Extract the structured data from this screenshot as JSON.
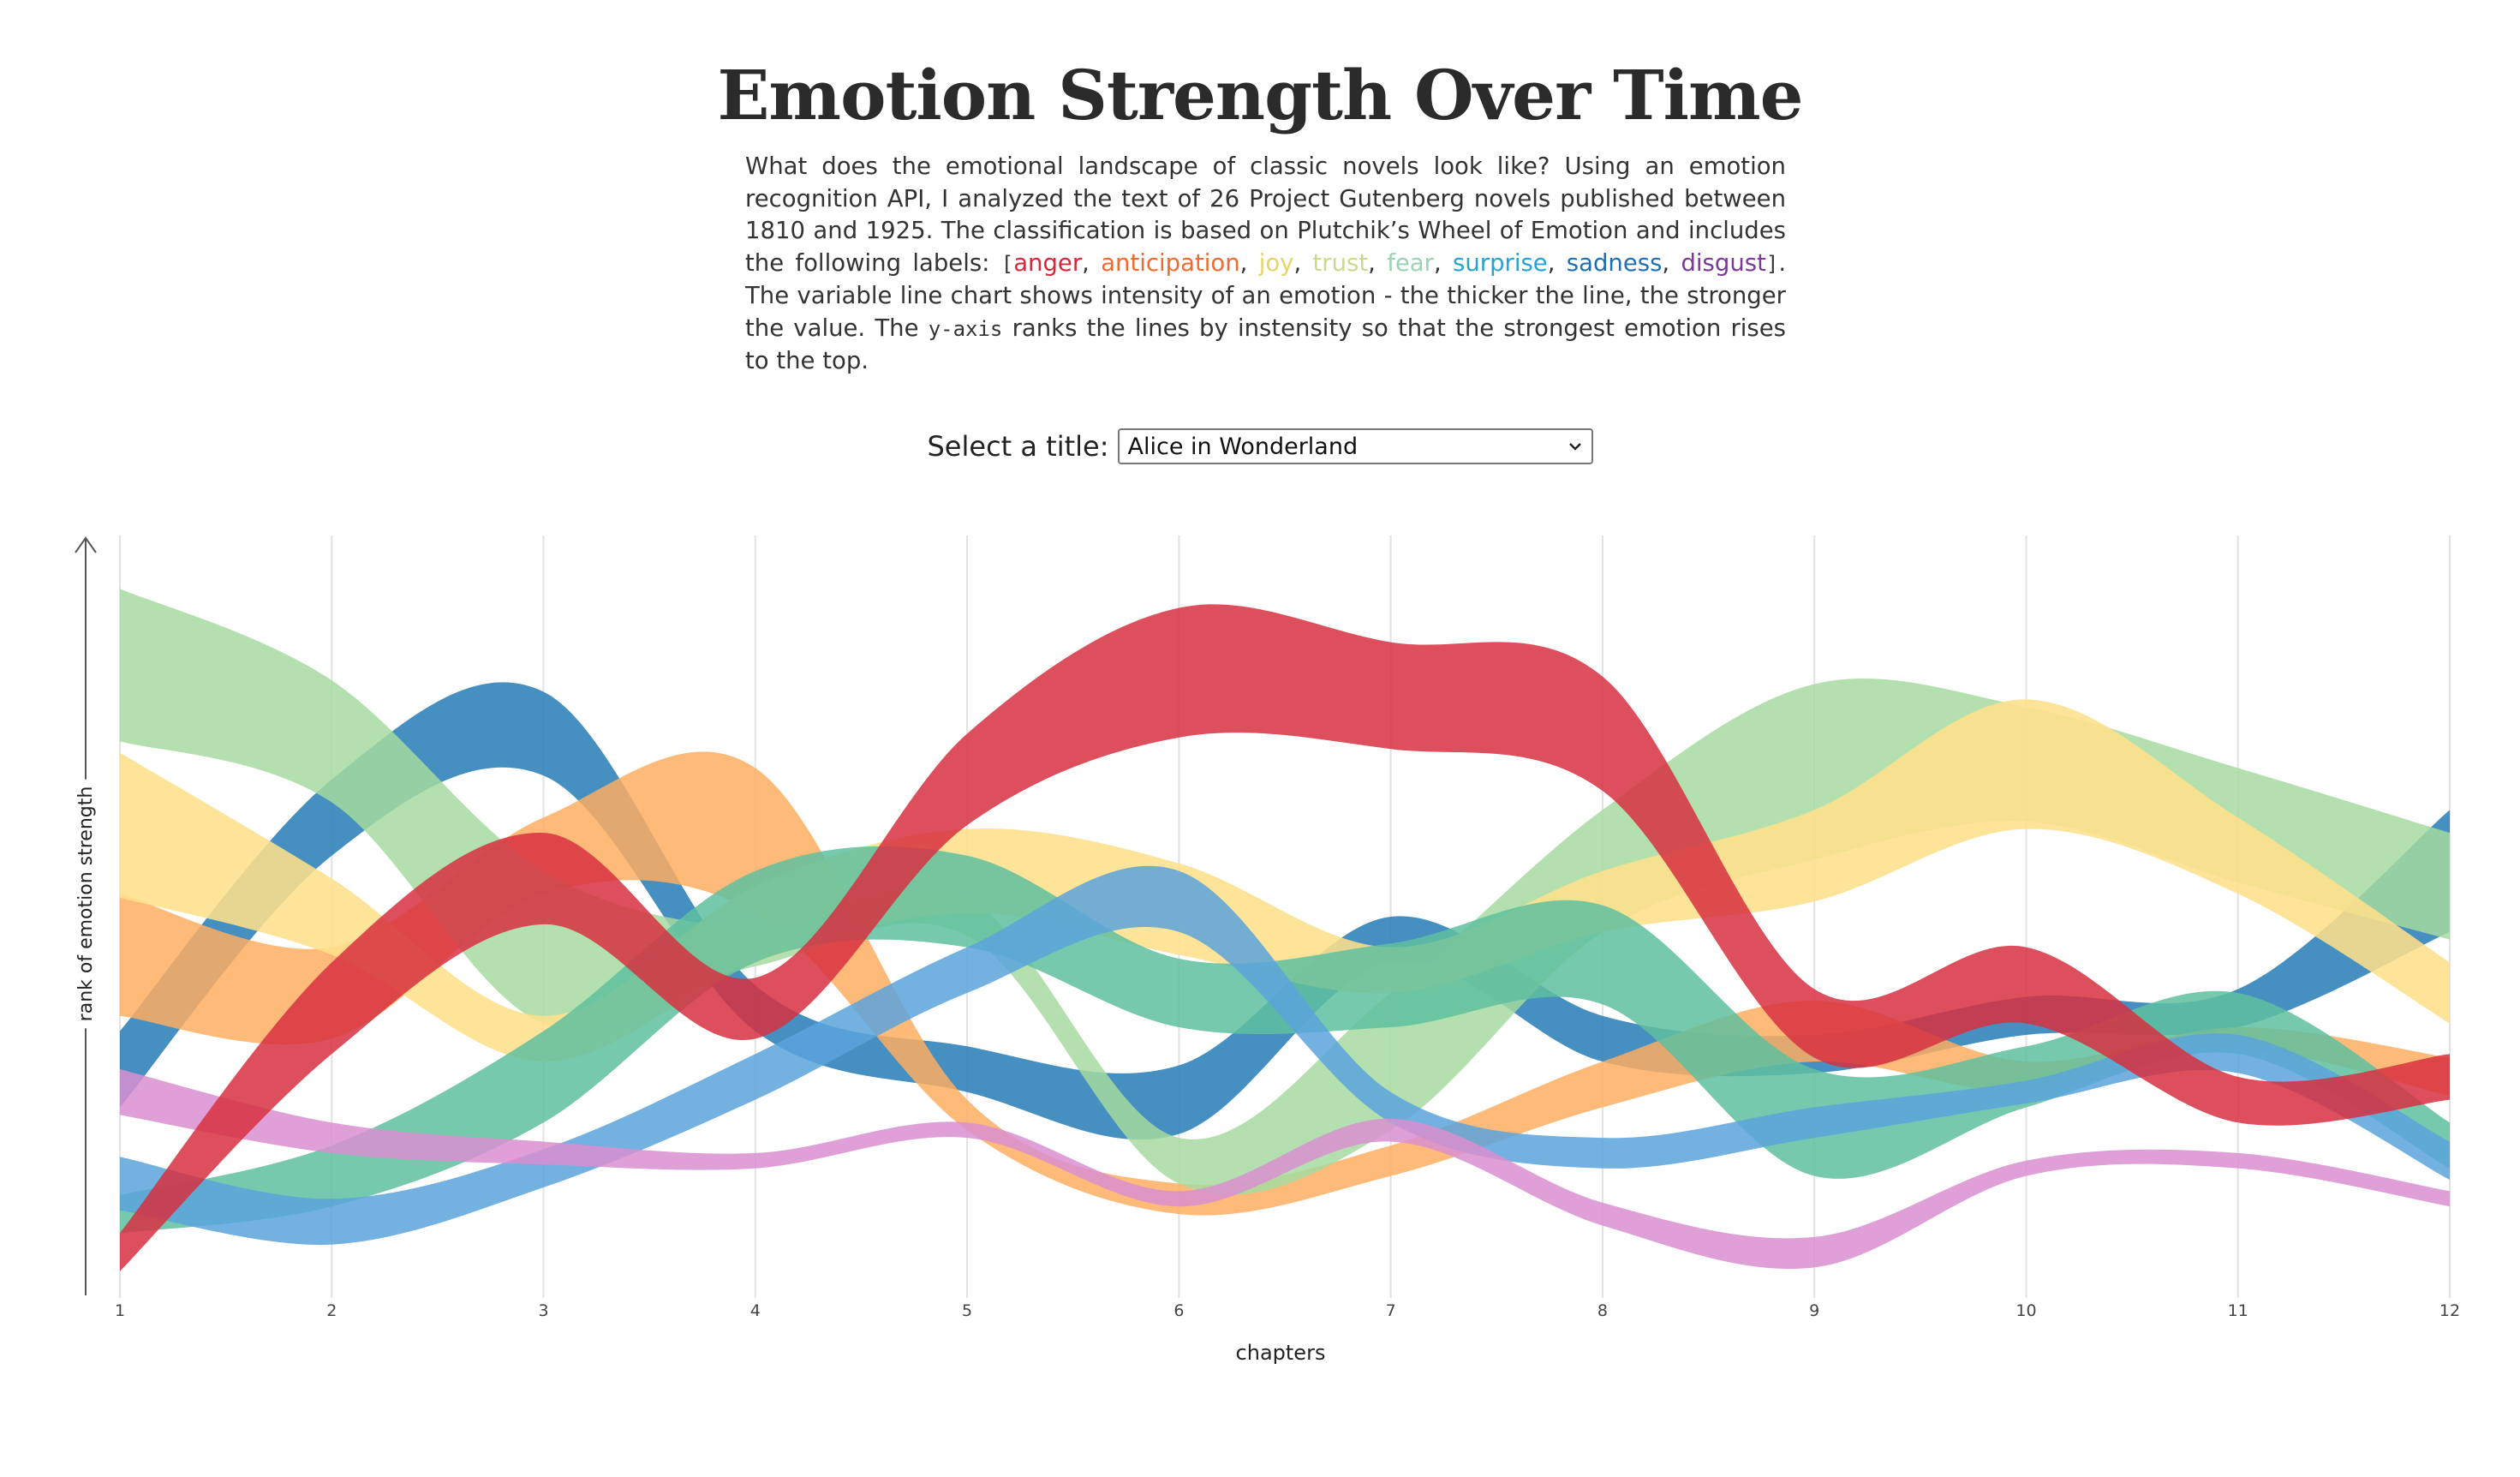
{
  "page": {
    "title": "Emotion Strength Over Time",
    "desc_intro": "What does the emotional landscape of classic novels look like? Using an emotion recognition API, I analyzed the text of 26 Project Gutenberg novels published between 1810 and 1925. The classification is based on Plutchik’s Wheel of Emotion and includes the following labels: ",
    "bracket_open": "[",
    "bracket_close": "]",
    "sep": ", ",
    "desc_mid": ". The variable line chart shows intensity of an emotion - the thicker the line, the stronger the value. The ",
    "yaxis_code": "y-axis",
    "desc_end": " ranks the lines by instensity so that the strongest emotion rises to the top.",
    "labels": {
      "anger": "anger",
      "anticipation": "anticipation",
      "joy": "joy",
      "trust": "trust",
      "fear": "fear",
      "surprise": "surprise",
      "sadness": "sadness",
      "disgust": "disgust"
    }
  },
  "selector": {
    "label": "Select a title:",
    "value": "Alice in Wonderland"
  },
  "chart_data": {
    "type": "area",
    "title": "",
    "xlabel": "chapters",
    "ylabel": "rank of emotion strength",
    "x": [
      1,
      2,
      3,
      4,
      5,
      6,
      7,
      8,
      9,
      10,
      11,
      12
    ],
    "ylim": [
      0,
      1
    ],
    "grid": true,
    "series": [
      {
        "color": "#2c7fb8",
        "opacity": 0.88,
        "center": [
          0.3,
          0.63,
          0.74,
          0.38,
          0.3,
          0.26,
          0.47,
          0.34,
          0.32,
          0.37,
          0.38,
          0.56
        ],
        "width": [
          0.1,
          0.1,
          0.11,
          0.06,
          0.06,
          0.09,
          0.06,
          0.06,
          0.05,
          0.05,
          0.05,
          0.16
        ]
      },
      {
        "color": "#fdae61",
        "opacity": 0.85,
        "center": [
          0.45,
          0.4,
          0.58,
          0.6,
          0.24,
          0.13,
          0.18,
          0.28,
          0.35,
          0.29,
          0.34,
          0.29
        ],
        "width": [
          0.16,
          0.12,
          0.1,
          0.19,
          0.04,
          0.04,
          0.04,
          0.06,
          0.08,
          0.04,
          0.03,
          0.05
        ]
      },
      {
        "color": "#a6dba0",
        "opacity": 0.85,
        "center": [
          0.83,
          0.73,
          0.46,
          0.46,
          0.5,
          0.18,
          0.31,
          0.56,
          0.69,
          0.7,
          0.62,
          0.54
        ],
        "width": [
          0.2,
          0.16,
          0.2,
          0.05,
          0.05,
          0.06,
          0.18,
          0.16,
          0.23,
          0.15,
          0.15,
          0.14
        ]
      },
      {
        "color": "#fee08b",
        "opacity": 0.88,
        "center": [
          0.62,
          0.5,
          0.34,
          0.49,
          0.56,
          0.51,
          0.43,
          0.52,
          0.58,
          0.7,
          0.58,
          0.4
        ],
        "width": [
          0.19,
          0.1,
          0.06,
          0.1,
          0.11,
          0.12,
          0.06,
          0.08,
          0.12,
          0.17,
          0.1,
          0.08
        ]
      },
      {
        "color": "#5fbf9f",
        "opacity": 0.85,
        "center": [
          0.11,
          0.16,
          0.29,
          0.5,
          0.52,
          0.4,
          0.41,
          0.45,
          0.23,
          0.29,
          0.36,
          0.2
        ],
        "width": [
          0.05,
          0.08,
          0.12,
          0.12,
          0.12,
          0.09,
          0.11,
          0.13,
          0.14,
          0.08,
          0.08,
          0.06
        ]
      },
      {
        "color": "#5ba3dc",
        "opacity": 0.85,
        "center": [
          0.15,
          0.1,
          0.17,
          0.29,
          0.43,
          0.52,
          0.25,
          0.19,
          0.23,
          0.27,
          0.32,
          0.18
        ],
        "width": [
          0.07,
          0.06,
          0.05,
          0.06,
          0.06,
          0.08,
          0.04,
          0.04,
          0.04,
          0.03,
          0.05,
          0.05
        ]
      },
      {
        "color": "#d98fd0",
        "opacity": 0.85,
        "center": [
          0.27,
          0.21,
          0.19,
          0.18,
          0.22,
          0.13,
          0.22,
          0.11,
          0.06,
          0.17,
          0.18,
          0.13
        ],
        "width": [
          0.06,
          0.04,
          0.03,
          0.02,
          0.02,
          0.02,
          0.03,
          0.03,
          0.04,
          0.02,
          0.02,
          0.02
        ]
      },
      {
        "color": "#d7303f",
        "opacity": 0.85,
        "center": [
          0.06,
          0.38,
          0.55,
          0.38,
          0.68,
          0.82,
          0.79,
          0.74,
          0.36,
          0.41,
          0.26,
          0.29
        ],
        "width": [
          0.05,
          0.12,
          0.12,
          0.08,
          0.12,
          0.17,
          0.14,
          0.15,
          0.09,
          0.1,
          0.06,
          0.06
        ]
      }
    ]
  }
}
